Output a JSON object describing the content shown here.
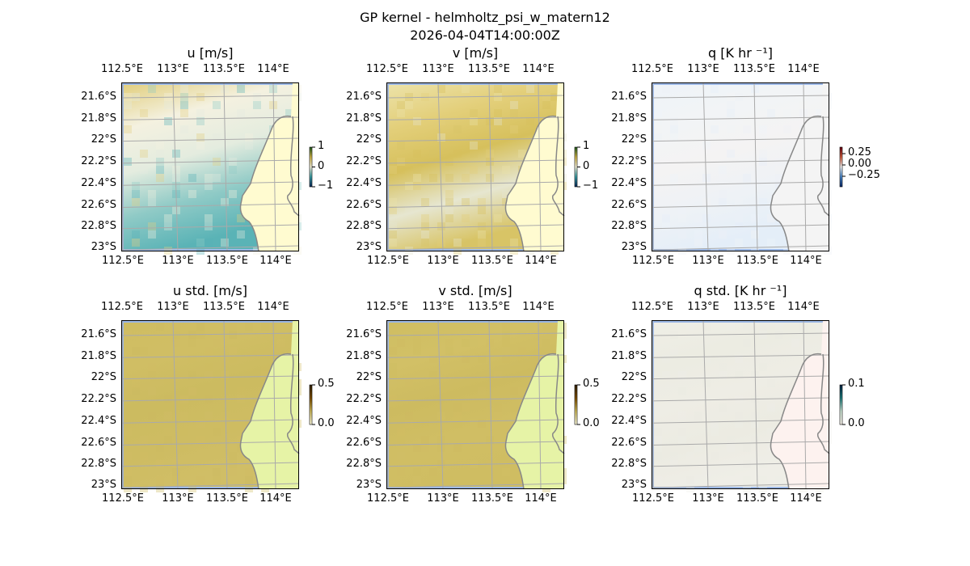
{
  "figure": {
    "title": "GP kernel - helmholtz_psi_w_matern12",
    "subtitle": "2026-04-04T14:00:00Z"
  },
  "lat_ticks": [
    "21.6°S",
    "21.8°S",
    "22°S",
    "22.2°S",
    "22.4°S",
    "22.6°S",
    "22.8°S",
    "23°S"
  ],
  "lon_ticks": [
    "112.5°E",
    "113°E",
    "113.5°E",
    "114°E"
  ],
  "panels": [
    {
      "title": "u [m/s]",
      "cbar_ticks": [
        "1",
        "0",
        "−1"
      ],
      "cmap": [
        "#0b2a5a",
        "#3aa0a8",
        "#f7f3dc",
        "#d4b84a",
        "#1d5a1d"
      ],
      "land": "#fffbd0",
      "top": "#e6d590",
      "bottom": "#4aaab0",
      "colors": [
        "#e2cf80",
        "#f4f1e0",
        "#e4ecdf",
        "#8fcac6",
        "#5ab3b6"
      ]
    },
    {
      "title": "v [m/s]",
      "cbar_ticks": [
        "1",
        "0",
        "−1"
      ],
      "cmap": [
        "#0b2a5a",
        "#3aa0a8",
        "#f7f3dc",
        "#d4b84a",
        "#1d5a1d"
      ],
      "land": "#fffbd0",
      "colors": [
        "#ece2a8",
        "#e3cf7a",
        "#d6c05c",
        "#e6e6d0",
        "#d8c466"
      ]
    },
    {
      "title": "q [K hr ⁻¹]",
      "cbar_ticks": [
        "0.25",
        "0.00",
        "−0.25"
      ],
      "cmap": [
        "#0a2a6a",
        "#4a8ad0",
        "#f7f7f7",
        "#d86040",
        "#6a0010"
      ],
      "land": "#f4f4f4",
      "colors": [
        "#eef3f8",
        "#f2f4f6",
        "#f4f3f3",
        "#eef2f6",
        "#e4eef8"
      ]
    },
    {
      "title": "u std. [m/s]",
      "cbar_ticks": [
        "0.5",
        "0.0"
      ],
      "cmap": [
        "#fffde0",
        "#d4c060",
        "#805000",
        "#302000"
      ],
      "land": "#e6f3a6",
      "colors": [
        "#cfbd62",
        "#d0be64",
        "#ccbb60",
        "#cebc62",
        "#d0be66"
      ]
    },
    {
      "title": "v std. [m/s]",
      "cbar_ticks": [
        "0.5",
        "0.0"
      ],
      "cmap": [
        "#fffde0",
        "#d4c060",
        "#805000",
        "#302000"
      ],
      "land": "#e6f3a6",
      "colors": [
        "#cfbe62",
        "#d2c066",
        "#cdbb60",
        "#d0be64",
        "#cfbd62"
      ]
    },
    {
      "title": "q std. [K hr ⁻¹]",
      "cbar_ticks": [
        "0.1",
        "0.0"
      ],
      "cmap": [
        "#fff8f0",
        "#d0e8d8",
        "#208080",
        "#002040"
      ],
      "land": "#fdf2ef",
      "colors": [
        "#efeee6",
        "#ecece2",
        "#eeede5",
        "#ecebe2",
        "#efeee7"
      ]
    }
  ]
}
